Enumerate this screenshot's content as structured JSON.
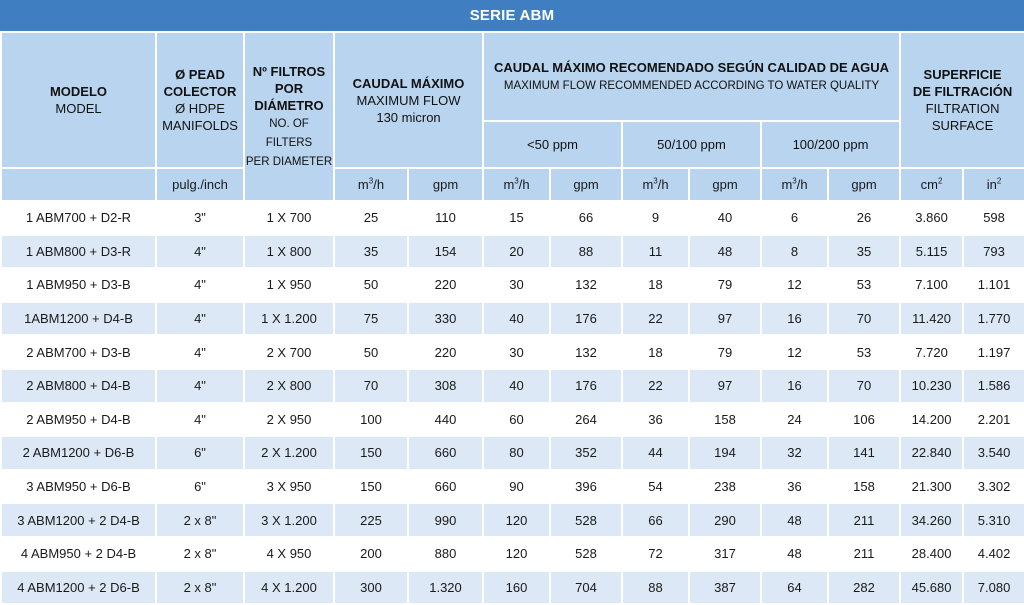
{
  "title": "SERIE ABM",
  "headers": {
    "model_es": "MODELO",
    "model_en": "MODEL",
    "manifold_es_1": "Ø PEAD",
    "manifold_es_2": "COLECTOR",
    "manifold_en_1": "Ø HDPE",
    "manifold_en_2": "MANIFOLDS",
    "manifold_unit": "pulg./inch",
    "filters_es_1": "Nº FILTROS",
    "filters_es_2": "POR",
    "filters_es_3": "DIÁMETRO",
    "filters_en_1": "NO. OF",
    "filters_en_2": "FILTERS",
    "filters_en_3": "PER DIAMETER",
    "maxflow_es": "CAUDAL MÁXIMO",
    "maxflow_en": "MAXIMUM FLOW",
    "maxflow_micron": "130 micron",
    "recflow_es": "CAUDAL MÁXIMO RECOMENDADO SEGÚN CALIDAD DE AGUA",
    "recflow_en": "MAXIMUM FLOW RECOMMENDED ACCORDING TO WATER QUALITY",
    "ppm_1": "<50 ppm",
    "ppm_2": "50/100 ppm",
    "ppm_3": "100/200 ppm",
    "surface_es_1": "SUPERFICIE",
    "surface_es_2": "DE FILTRACIÓN",
    "surface_en_1": "FILTRATION",
    "surface_en_2": "SURFACE",
    "unit_m3h_base": "m",
    "unit_m3h_sup": "3",
    "unit_m3h_tail": "/h",
    "unit_gpm": "gpm",
    "unit_cm_base": "cm",
    "unit_cm_sup": "2",
    "unit_in_base": "in",
    "unit_in_sup": "2"
  },
  "rows": [
    [
      "1 ABM700 + D2-R",
      "3\"",
      "1 X 700",
      "25",
      "110",
      "15",
      "66",
      "9",
      "40",
      "6",
      "26",
      "3.860",
      "598"
    ],
    [
      "1 ABM800 + D3-R",
      "4\"",
      "1 X 800",
      "35",
      "154",
      "20",
      "88",
      "11",
      "48",
      "8",
      "35",
      "5.115",
      "793"
    ],
    [
      "1 ABM950 + D3-B",
      "4\"",
      "1 X 950",
      "50",
      "220",
      "30",
      "132",
      "18",
      "79",
      "12",
      "53",
      "7.100",
      "1.101"
    ],
    [
      "1ABM1200 + D4-B",
      "4\"",
      "1 X 1.200",
      "75",
      "330",
      "40",
      "176",
      "22",
      "97",
      "16",
      "70",
      "11.420",
      "1.770"
    ],
    [
      "2 ABM700 + D3-B",
      "4\"",
      "2 X 700",
      "50",
      "220",
      "30",
      "132",
      "18",
      "79",
      "12",
      "53",
      "7.720",
      "1.197"
    ],
    [
      "2 ABM800 + D4-B",
      "4\"",
      "2 X 800",
      "70",
      "308",
      "40",
      "176",
      "22",
      "97",
      "16",
      "70",
      "10.230",
      "1.586"
    ],
    [
      "2 ABM950 + D4-B",
      "4\"",
      "2 X 950",
      "100",
      "440",
      "60",
      "264",
      "36",
      "158",
      "24",
      "106",
      "14.200",
      "2.201"
    ],
    [
      "2 ABM1200 + D6-B",
      "6\"",
      "2 X 1.200",
      "150",
      "660",
      "80",
      "352",
      "44",
      "194",
      "32",
      "141",
      "22.840",
      "3.540"
    ],
    [
      "3 ABM950 + D6-B",
      "6\"",
      "3 X 950",
      "150",
      "660",
      "90",
      "396",
      "54",
      "238",
      "36",
      "158",
      "21.300",
      "3.302"
    ],
    [
      "3 ABM1200 + 2 D4-B",
      "2 x 8\"",
      "3 X 1.200",
      "225",
      "990",
      "120",
      "528",
      "66",
      "290",
      "48",
      "211",
      "34.260",
      "5.310"
    ],
    [
      "4 ABM950 + 2 D4-B",
      "2 x 8\"",
      "4 X 950",
      "200",
      "880",
      "120",
      "528",
      "72",
      "317",
      "48",
      "211",
      "28.400",
      "4.402"
    ],
    [
      "4 ABM1200 + 2 D6-B",
      "2 x 8\"",
      "4 X 1.200",
      "300",
      "1.320",
      "160",
      "704",
      "88",
      "387",
      "64",
      "282",
      "45.680",
      "7.080"
    ]
  ]
}
